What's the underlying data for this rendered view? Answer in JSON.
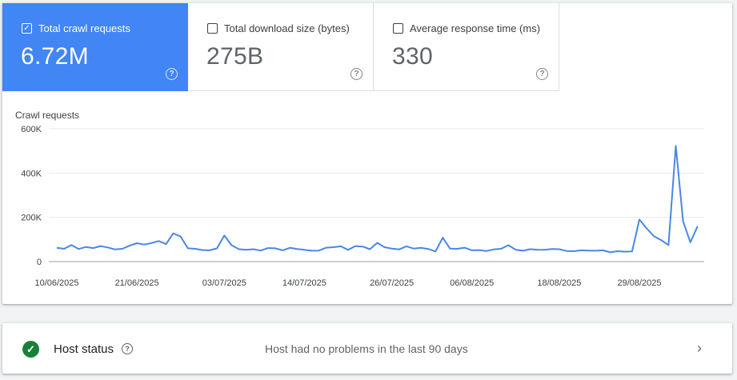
{
  "metrics": [
    {
      "label": "Total crawl requests",
      "value": "6.72M",
      "selected": true
    },
    {
      "label": "Total download size (bytes)",
      "value": "275B",
      "selected": false
    },
    {
      "label": "Average response time (ms)",
      "value": "330",
      "selected": false
    }
  ],
  "colors": {
    "accent": "#4285f4",
    "line": "#4a86e8",
    "ok": "#188038"
  },
  "chart_data": {
    "type": "line",
    "title": "Crawl requests",
    "ylim": [
      0,
      600000
    ],
    "y_ticks": [
      0,
      200000,
      400000,
      600000
    ],
    "y_tick_labels": [
      "0",
      "200K",
      "400K",
      "600K"
    ],
    "x_tick_labels": [
      "10/06/2025",
      "21/06/2025",
      "03/07/2025",
      "14/07/2025",
      "26/07/2025",
      "06/08/2025",
      "18/08/2025",
      "29/08/2025"
    ],
    "x_tick_dates": [
      "2025-06-10",
      "2025-06-21",
      "2025-07-03",
      "2025-07-14",
      "2025-07-26",
      "2025-08-06",
      "2025-08-18",
      "2025-08-29"
    ],
    "grid": true,
    "series": [
      {
        "start_date": "2025-06-10",
        "values": [
          62000,
          58000,
          75000,
          57000,
          66000,
          61000,
          70000,
          64000,
          55000,
          58000,
          72000,
          83000,
          77000,
          84000,
          93000,
          79000,
          128000,
          113000,
          60000,
          58000,
          52000,
          51000,
          60000,
          118000,
          74000,
          56000,
          53000,
          56000,
          50000,
          61000,
          60000,
          51000,
          62000,
          57000,
          53000,
          49000,
          50000,
          63000,
          65000,
          69000,
          53000,
          70000,
          68000,
          56000,
          85000,
          65000,
          59000,
          55000,
          69000,
          59000,
          62000,
          57000,
          46000,
          108000,
          59000,
          58000,
          63000,
          51000,
          52000,
          48000,
          55000,
          58000,
          74000,
          54000,
          49000,
          56000,
          54000,
          53000,
          57000,
          56000,
          48000,
          47000,
          51000,
          50000,
          49000,
          51000,
          42000,
          47000,
          45000,
          46000,
          190000,
          150000,
          115000,
          97000,
          75000,
          523000,
          183000,
          87000,
          160000
        ]
      }
    ]
  },
  "host": {
    "title": "Host status",
    "message": "Host had no problems in the last 90 days"
  }
}
